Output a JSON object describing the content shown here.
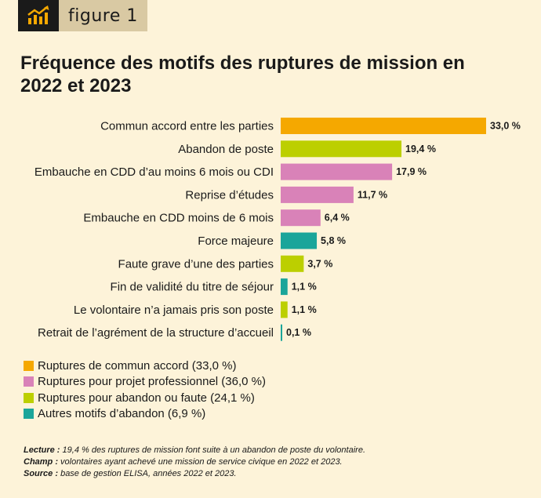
{
  "figure_tag": {
    "icon": "trend-chart-icon",
    "label": "figure 1"
  },
  "title": "Fréquence des motifs des ruptures de mission en 2022 et 2023",
  "chart_data": {
    "type": "bar",
    "orientation": "horizontal",
    "categories": [
      "Commun accord entre les parties",
      "Abandon de poste",
      "Embauche en CDD d’au moins 6 mois ou CDI",
      "Reprise d’études",
      "Embauche en CDD moins de 6 mois",
      "Force majeure",
      "Faute grave d’une des parties",
      "Fin de validité du titre de séjour",
      "Le volontaire n’a jamais pris son poste",
      "Retrait de l’agrément de la structure d’accueil"
    ],
    "values": [
      33.0,
      19.4,
      17.9,
      11.7,
      6.4,
      5.8,
      3.7,
      1.1,
      1.1,
      0.1
    ],
    "value_labels": [
      "33,0 %",
      "19,4 %",
      "17,9 %",
      "11,7 %",
      "6,4 %",
      "5,8 %",
      "3,7 %",
      "1,1 %",
      "1,1 %",
      "0,1 %"
    ],
    "groups": [
      0,
      2,
      1,
      1,
      1,
      3,
      2,
      3,
      2,
      3
    ],
    "xlim": [
      0,
      33.0
    ],
    "grid": false
  },
  "legend": [
    {
      "label": "Ruptures de commun accord (33,0 %)",
      "color": "#f5a800"
    },
    {
      "label": "Ruptures pour projet professionnel (36,0 %)",
      "color": "#d982b8"
    },
    {
      "label": "Ruptures pour abandon ou faute (24,1 %)",
      "color": "#bccf00"
    },
    {
      "label": "Autres motifs d’abandon (6,9 %)",
      "color": "#1aa59a"
    }
  ],
  "notes": {
    "lecture_label": "Lecture :",
    "lecture_text": " 19,4 % des ruptures de mission font suite à un abandon de poste du volontaire.",
    "champ_label": "Champ :",
    "champ_text": " volontaires ayant achevé une mission de service civique en 2022 et 2023.",
    "source_label": "Source :",
    "source_text": " base de gestion ELISA, années 2022 et 2023."
  }
}
